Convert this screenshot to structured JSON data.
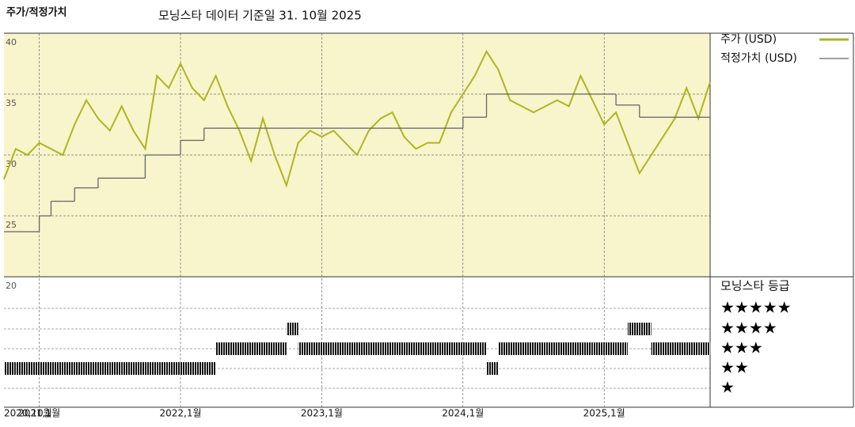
{
  "chart_data": {
    "type": "line",
    "title": "주가/적정가치",
    "subtitle": "모닝스타 데이터 기준일 31. 10월 2025",
    "x": [
      "2020-10",
      "2020-11",
      "2020-12",
      "2021-01",
      "2021-02",
      "2021-03",
      "2021-04",
      "2021-05",
      "2021-06",
      "2021-07",
      "2021-08",
      "2021-09",
      "2021-10",
      "2021-11",
      "2021-12",
      "2022-01",
      "2022-02",
      "2022-03",
      "2022-04",
      "2022-05",
      "2022-06",
      "2022-07",
      "2022-08",
      "2022-09",
      "2022-10",
      "2022-11",
      "2022-12",
      "2023-01",
      "2023-02",
      "2023-03",
      "2023-04",
      "2023-05",
      "2023-06",
      "2023-07",
      "2023-08",
      "2023-09",
      "2023-10",
      "2023-11",
      "2023-12",
      "2024-01",
      "2024-02",
      "2024-03",
      "2024-04",
      "2024-05",
      "2024-06",
      "2024-07",
      "2024-08",
      "2024-09",
      "2024-10",
      "2024-11",
      "2024-12",
      "2025-01",
      "2025-02",
      "2025-03",
      "2025-04",
      "2025-05",
      "2025-06",
      "2025-07",
      "2025-08",
      "2025-09",
      "2025-10"
    ],
    "series": [
      {
        "name": "주가 (USD)",
        "color": "#b0b51e",
        "values": [
          28,
          30.5,
          30,
          31,
          30.5,
          30,
          32.5,
          34.5,
          33,
          32,
          34,
          32,
          30.5,
          36.5,
          35.5,
          37.5,
          35.5,
          34.5,
          36.5,
          34,
          32,
          29.5,
          33,
          30,
          27.5,
          31,
          32,
          31.5,
          32,
          31,
          30,
          32,
          33,
          33.5,
          31.5,
          30.5,
          31,
          31,
          33.5,
          35,
          36.5,
          38.5,
          37,
          34.5,
          34,
          33.5,
          34,
          34.5,
          34,
          36.5,
          34.5,
          32.5,
          33.5,
          31,
          28.5,
          30,
          31.5,
          33,
          35.5,
          33,
          36
        ]
      },
      {
        "name": "적정가치 (USD)",
        "color": "#666666",
        "values": [
          23.7,
          23.7,
          23.7,
          25,
          26.2,
          26.2,
          27.3,
          27.3,
          28.1,
          28.1,
          28.1,
          28.1,
          30,
          30,
          30,
          31.2,
          31.2,
          32.2,
          32.2,
          32.2,
          32.2,
          32.2,
          32.2,
          32.2,
          32.2,
          32.2,
          32.2,
          32.2,
          32.2,
          32.2,
          32.2,
          32.2,
          32.2,
          32.2,
          32.2,
          32.2,
          32.2,
          32.2,
          32.2,
          33.1,
          33.1,
          35,
          35,
          35,
          35,
          35,
          35,
          35,
          35,
          35,
          35,
          35,
          34.1,
          34.1,
          33.1,
          33.1,
          33.1,
          33.1,
          33.1,
          33.1,
          34.1
        ]
      }
    ],
    "xlim": [
      "2020-10",
      "2025-10"
    ],
    "xticks": [
      {
        "value": "2020-10",
        "label": "2020,10월"
      },
      {
        "value": "2021-01",
        "label": "2021,1월"
      },
      {
        "value": "2022-01",
        "label": "2022,1월"
      },
      {
        "value": "2023-01",
        "label": "2023,1월"
      },
      {
        "value": "2024-01",
        "label": "2024,1월"
      },
      {
        "value": "2025-01",
        "label": "2025,1월"
      }
    ],
    "ylim": [
      20,
      40
    ],
    "yticks": [
      20,
      25,
      30,
      35,
      40
    ],
    "grid": true,
    "rating": {
      "title": "모닝스타 등급",
      "levels": [
        5,
        4,
        3,
        2,
        1
      ],
      "level_labels": [
        "★★★★★",
        "★★★★",
        "★★★",
        "★★",
        "★"
      ],
      "values": [
        2,
        2,
        2,
        2,
        2,
        2,
        2,
        2,
        2,
        2,
        2,
        2,
        2,
        2,
        2,
        2,
        2,
        2,
        3,
        3,
        3,
        3,
        3,
        3,
        4,
        3,
        3,
        3,
        3,
        3,
        3,
        3,
        3,
        3,
        3,
        3,
        3,
        3,
        3,
        3,
        3,
        2,
        3,
        3,
        3,
        3,
        3,
        3,
        3,
        3,
        3,
        3,
        3,
        4,
        4,
        3,
        3,
        3,
        3,
        3,
        3
      ]
    }
  }
}
